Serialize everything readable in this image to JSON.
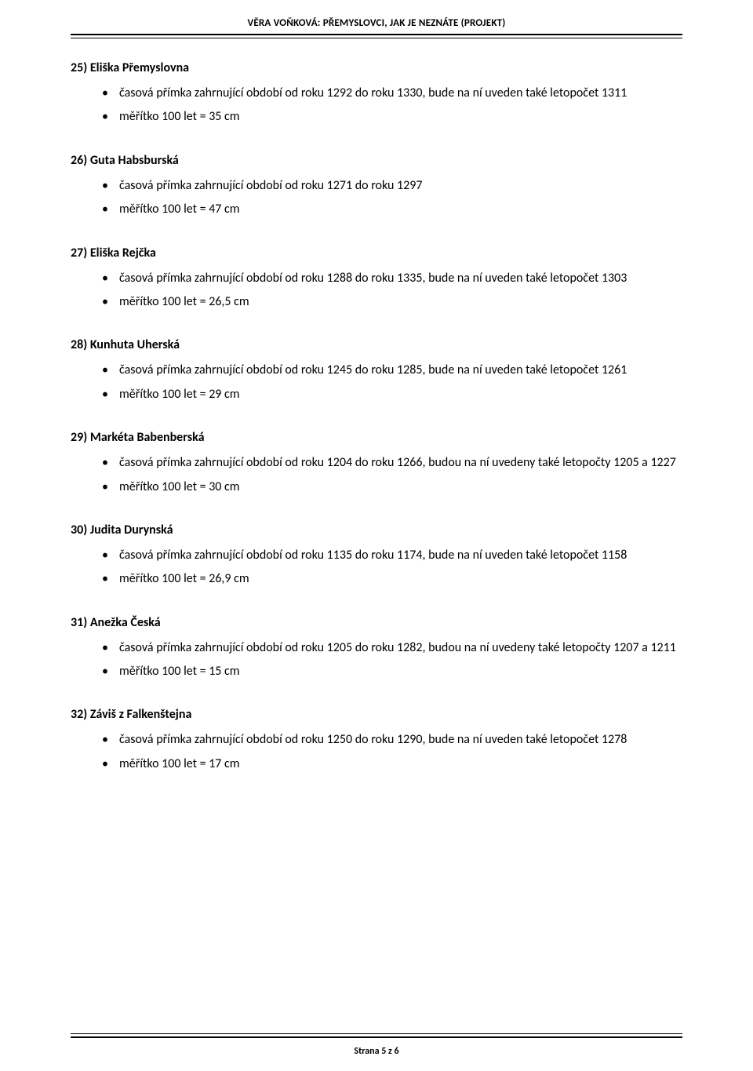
{
  "header": "VĚRA VOŇKOVÁ: PŘEMYSLOVCI, JAK JE NEZNÁTE (PROJEKT)",
  "footer": "Strana 5 z 6",
  "sections": [
    {
      "num": "25)",
      "title": "Eliška Přemyslovna",
      "items": [
        "časová přímka zahrnující období od roku 1292 do roku 1330, bude na ní uveden také letopočet 1311",
        "měřítko 100 let = 35 cm"
      ]
    },
    {
      "num": "26)",
      "title": "Guta Habsburská",
      "items": [
        "časová přímka zahrnující období od roku 1271 do roku 1297",
        "měřítko 100 let = 47 cm"
      ]
    },
    {
      "num": "27)",
      "title": "Eliška Rejčka",
      "items": [
        "časová přímka zahrnující období od roku 1288 do roku 1335, bude na ní uveden také letopočet 1303",
        "měřítko 100 let = 26,5 cm"
      ]
    },
    {
      "num": "28)",
      "title": "Kunhuta Uherská",
      "items": [
        "časová přímka zahrnující období od roku 1245 do roku 1285, bude na ní uveden také letopočet 1261",
        "měřítko 100 let = 29 cm"
      ]
    },
    {
      "num": "29)",
      "title": "Markéta Babenberská",
      "items": [
        "časová přímka zahrnující období od roku 1204 do roku 1266, budou na ní uvedeny také letopočty 1205 a 1227",
        "měřítko 100 let = 30 cm"
      ]
    },
    {
      "num": "30)",
      "title": "Judita Durynská",
      "items": [
        "časová přímka zahrnující období od roku 1135 do roku 1174, bude na ní uveden také letopočet 1158",
        "měřítko 100 let = 26,9 cm"
      ]
    },
    {
      "num": "31)",
      "title": "Anežka Česká",
      "items": [
        "časová přímka zahrnující období od roku 1205 do roku 1282, budou na ní uvedeny také letopočty 1207 a 1211",
        "měřítko 100 let = 15 cm"
      ]
    },
    {
      "num": "32)",
      "title": "Záviš z Falkenštejna",
      "items": [
        "časová přímka zahrnující období od roku 1250 do roku 1290, bude na ní uveden také letopočet 1278",
        "měřítko 100 let = 17 cm"
      ]
    }
  ]
}
